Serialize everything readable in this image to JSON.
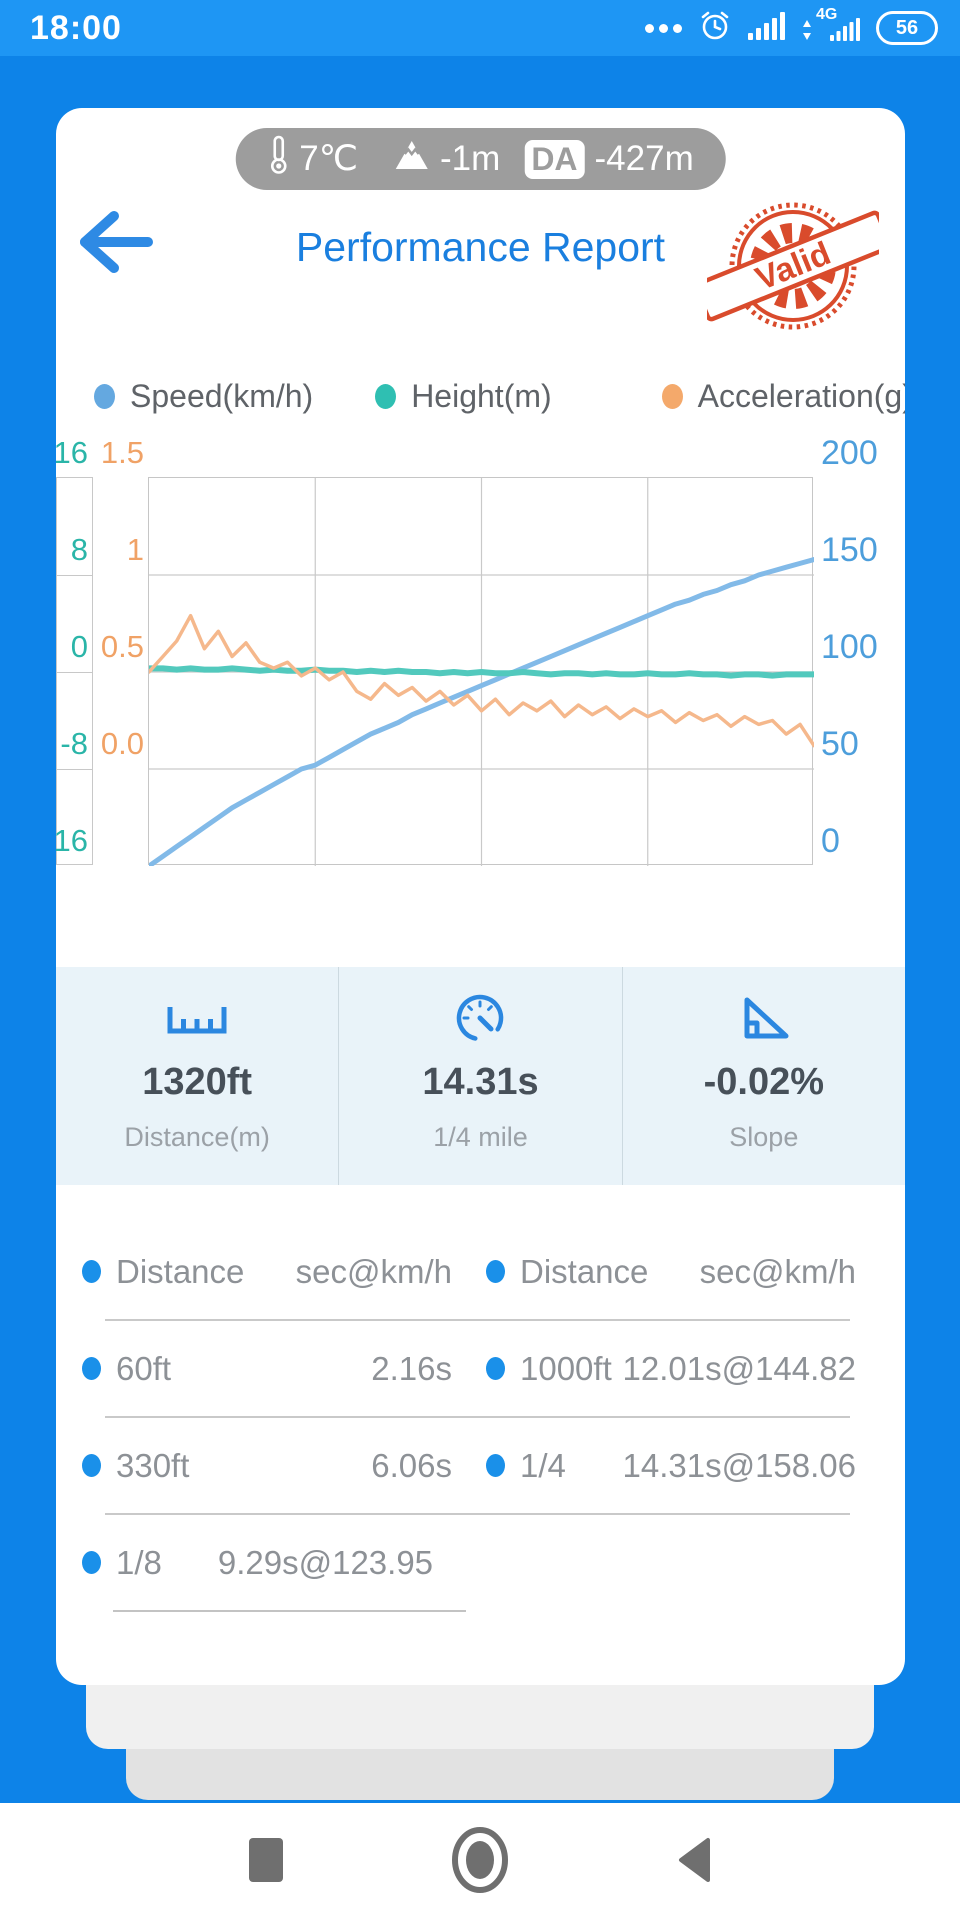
{
  "status_bar": {
    "time": "18:00",
    "network": "4G",
    "battery": "56"
  },
  "env_pill": {
    "temperature": "7℃",
    "altitude": "-1m",
    "da_label": "DA",
    "da_value": "-427m"
  },
  "header": {
    "title": "Performance Report",
    "stamp_label": "Valid"
  },
  "theme": {
    "background_blue": "#0d83e8",
    "statusbar_blue": "#1e96f4",
    "title_blue": "#1a7fdf",
    "stamp_red": "#d94b2c",
    "stats_bg": "#e9f3f9",
    "accent_blue": "#2b87e0",
    "speed_color": "#82bae8",
    "height_color": "#52c9bd",
    "accel_color": "#f5b88c"
  },
  "chart_data": {
    "type": "line",
    "x_range": [
      0,
      14.31
    ],
    "grid": {
      "cols": 4,
      "rows": 4
    },
    "legend_position": "top",
    "axes": {
      "speed": {
        "min": 0,
        "max": 200,
        "ticks": [
          "200",
          "150",
          "100",
          "50",
          "0"
        ],
        "color": "#4d9edb"
      },
      "height": {
        "min": -16,
        "max": 16,
        "ticks": [
          "16",
          "8",
          "0",
          "-8",
          "-16"
        ],
        "color": "#2ab5a8"
      },
      "accel": {
        "min": -0.5,
        "max": 1.5,
        "ticks": [
          "1.5",
          "1",
          "0.5",
          "0.0"
        ],
        "color": "#f0a266"
      }
    },
    "series": [
      {
        "name": "Speed(km/h)",
        "axis": "speed",
        "color": "#82bae8",
        "dot_color": "#64a8e0",
        "width": 5,
        "values": [
          0,
          5,
          10,
          15,
          20,
          25,
          30,
          34,
          38,
          42,
          46,
          50,
          52,
          56,
          60,
          64,
          68,
          71,
          74,
          78,
          81,
          84,
          87,
          90,
          93,
          96,
          99,
          102,
          105,
          108,
          111,
          114,
          117,
          120,
          123,
          126,
          129,
          132,
          135,
          137,
          140,
          142,
          145,
          147,
          150,
          152,
          154,
          156,
          158
        ]
      },
      {
        "name": "Height(m)",
        "axis": "height",
        "color": "#52c9bd",
        "dot_color": "#2fbfb2",
        "width": 6,
        "values": [
          0.3,
          0.3,
          0.2,
          0.3,
          0.2,
          0.2,
          0.3,
          0.2,
          0.1,
          0.2,
          0.1,
          0.1,
          0.2,
          0.1,
          0.1,
          0.0,
          0.1,
          0.0,
          0.1,
          0.0,
          0.0,
          -0.1,
          0.0,
          -0.1,
          0.0,
          -0.1,
          -0.1,
          0.0,
          -0.1,
          -0.2,
          -0.1,
          -0.1,
          -0.2,
          -0.1,
          -0.2,
          -0.2,
          -0.1,
          -0.2,
          -0.2,
          -0.1,
          -0.2,
          -0.2,
          -0.3,
          -0.2,
          -0.2,
          -0.3,
          -0.2,
          -0.2,
          -0.2
        ]
      },
      {
        "name": "Acceleration(g)",
        "axis": "accel",
        "color": "#f5b88c",
        "dot_color": "#f4a96b",
        "width": 3.5,
        "values": [
          0.5,
          0.58,
          0.66,
          0.79,
          0.62,
          0.71,
          0.58,
          0.65,
          0.55,
          0.52,
          0.55,
          0.48,
          0.52,
          0.46,
          0.5,
          0.4,
          0.36,
          0.44,
          0.38,
          0.42,
          0.35,
          0.4,
          0.33,
          0.38,
          0.3,
          0.36,
          0.28,
          0.34,
          0.3,
          0.35,
          0.27,
          0.33,
          0.28,
          0.32,
          0.26,
          0.31,
          0.27,
          0.3,
          0.24,
          0.29,
          0.25,
          0.28,
          0.22,
          0.27,
          0.23,
          0.25,
          0.18,
          0.23,
          0.12
        ]
      }
    ]
  },
  "stats": [
    {
      "icon": "ruler-icon",
      "value": "1320ft",
      "label": "Distance(m)"
    },
    {
      "icon": "speedometer-icon",
      "value": "14.31s",
      "label": "1/4 mile"
    },
    {
      "icon": "slope-icon",
      "value": "-0.02%",
      "label": "Slope"
    }
  ],
  "table": {
    "header": {
      "left_label": "Distance",
      "left_unit": "sec@km/h",
      "right_label": "Distance",
      "right_unit": "sec@km/h"
    },
    "rows": [
      {
        "left_label": "60ft",
        "left_value": "2.16s",
        "right_label": "1000ft",
        "right_value": "12.01s@144.82"
      },
      {
        "left_label": "330ft",
        "left_value": "6.06s",
        "right_label": "1/4",
        "right_value": "14.31s@158.06"
      },
      {
        "left_label": "1/8",
        "left_value": "9.29s@123.95"
      }
    ]
  }
}
